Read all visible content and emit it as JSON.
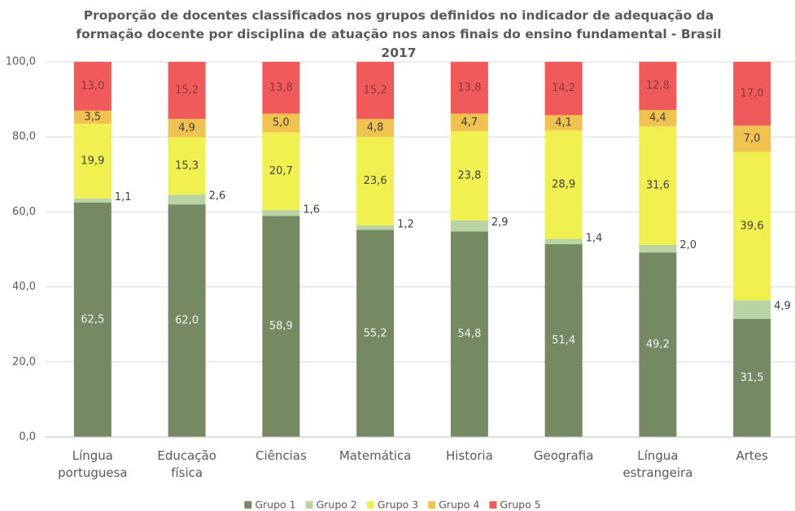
{
  "chart_data": {
    "type": "stacked_bar",
    "title": "Proporção de docentes classificados nos grupos definidos no indicador de adequação da formação docente por disciplina de atuação nos anos finais do ensino fundamental - Brasil 2017",
    "categories": [
      "Língua portuguesa",
      "Educação física",
      "Ciências",
      "Matemática",
      "Historia",
      "Geografia",
      "Língua estrangeira",
      "Artes"
    ],
    "series": [
      {
        "name": "Grupo 1",
        "color": "#758a63",
        "values": [
          62.5,
          62.0,
          58.9,
          55.2,
          54.8,
          51.4,
          49.2,
          31.5
        ],
        "value_labels": [
          "62,5",
          "62,0",
          "58,9",
          "55,2",
          "54,8",
          "51,4",
          "49,2",
          "31,5"
        ]
      },
      {
        "name": "Grupo 2",
        "color": "#b9d3a2",
        "values": [
          1.1,
          2.6,
          1.6,
          1.2,
          2.9,
          1.4,
          2.0,
          4.9
        ],
        "value_labels": [
          "1,1",
          "2,6",
          "1,6",
          "1,2",
          "2,9",
          "1,4",
          "2,0",
          "4,9"
        ]
      },
      {
        "name": "Grupo 3",
        "color": "#f0f050",
        "values": [
          19.9,
          15.3,
          20.7,
          23.6,
          23.8,
          28.9,
          31.6,
          39.6
        ],
        "value_labels": [
          "19,9",
          "15,3",
          "20,7",
          "23,6",
          "23,8",
          "28,9",
          "31,6",
          "39,6"
        ]
      },
      {
        "name": "Grupo 4",
        "color": "#f0c24f",
        "values": [
          3.5,
          4.9,
          5.0,
          4.8,
          4.7,
          4.1,
          4.4,
          7.0
        ],
        "value_labels": [
          "3,5",
          "4,9",
          "5,0",
          "4,8",
          "4,7",
          "4,1",
          "4,4",
          "7,0"
        ]
      },
      {
        "name": "Grupo 5",
        "color": "#f05a5a",
        "values": [
          13.0,
          15.2,
          13.8,
          15.2,
          13.8,
          14.2,
          12.8,
          17.0
        ],
        "value_labels": [
          "13,0",
          "15,2",
          "13,8",
          "15,2",
          "13,8",
          "14,2",
          "12,8",
          "17,0"
        ]
      }
    ],
    "ylim": [
      0,
      100
    ],
    "yticks": [
      {
        "value": 0,
        "label": "0,0"
      },
      {
        "value": 20,
        "label": "20,0"
      },
      {
        "value": 40,
        "label": "40,0"
      },
      {
        "value": 60,
        "label": "60,0"
      },
      {
        "value": 80,
        "label": "80,0"
      },
      {
        "value": 100,
        "label": "100,0"
      }
    ],
    "grid": true,
    "legend": "bottom"
  }
}
